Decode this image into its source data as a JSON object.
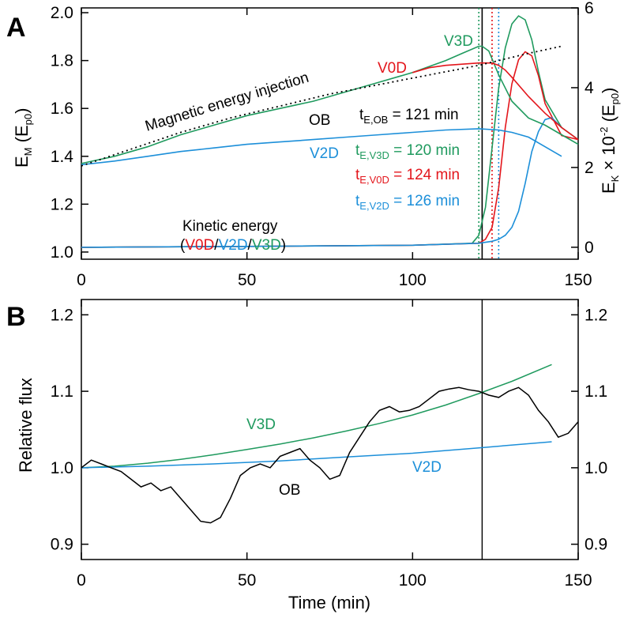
{
  "colors": {
    "V0D": "#e3161c",
    "V2D": "#1c8fd9",
    "V3D": "#1f9a5e",
    "OB": "#000000",
    "axis": "#000000"
  },
  "chart_data": [
    {
      "panel": "A",
      "type": "line",
      "xlabel": "",
      "ylabel_left": "E_M (E_p0)",
      "ylabel_right": "E_K × 10^-2 (E_p0)",
      "xlim": [
        0,
        150
      ],
      "ylim_left": [
        0.97,
        2.02
      ],
      "ylim_right": [
        -0.3,
        6.0
      ],
      "xticks": [
        0,
        50,
        100,
        150
      ],
      "yticks_left": [
        "1.0",
        "1.2",
        "1.4",
        "1.6",
        "1.8",
        "2.0"
      ],
      "yticks_left_values": [
        1.0,
        1.2,
        1.4,
        1.6,
        1.8,
        2.0
      ],
      "yticks_right": [
        "0",
        "2",
        "4",
        "6"
      ],
      "yticks_right_values": [
        0,
        2,
        4,
        6
      ],
      "magnetic_series": [
        {
          "name": "V3D",
          "axis": "left",
          "x": [
            0,
            10,
            20,
            30,
            40,
            50,
            60,
            70,
            80,
            90,
            100,
            110,
            115,
            120,
            121,
            123,
            126,
            130,
            135,
            140,
            145,
            150
          ],
          "y": [
            1.37,
            1.4,
            1.44,
            1.49,
            1.53,
            1.57,
            1.6,
            1.63,
            1.67,
            1.71,
            1.75,
            1.8,
            1.83,
            1.86,
            1.86,
            1.84,
            1.74,
            1.63,
            1.56,
            1.53,
            1.49,
            1.45
          ]
        },
        {
          "name": "V0D",
          "axis": "left",
          "x": [
            100,
            105,
            110,
            115,
            120,
            123,
            124,
            126,
            128,
            130,
            135,
            140,
            145,
            150
          ],
          "y": [
            1.75,
            1.77,
            1.78,
            1.785,
            1.79,
            1.79,
            1.79,
            1.78,
            1.76,
            1.73,
            1.65,
            1.58,
            1.52,
            1.47
          ]
        },
        {
          "name": "V2D",
          "axis": "left",
          "x": [
            0,
            10,
            20,
            30,
            40,
            50,
            60,
            70,
            80,
            90,
            100,
            110,
            120,
            126,
            130,
            135,
            140,
            145
          ],
          "y": [
            1.365,
            1.38,
            1.4,
            1.42,
            1.435,
            1.45,
            1.46,
            1.47,
            1.48,
            1.49,
            1.5,
            1.51,
            1.515,
            1.51,
            1.5,
            1.48,
            1.44,
            1.4
          ]
        },
        {
          "name": "Magnetic energy injection",
          "axis": "left",
          "style": "dotted",
          "x": [
            0,
            15,
            30,
            45,
            60,
            75,
            90,
            105,
            120,
            135,
            145
          ],
          "y": [
            1.36,
            1.43,
            1.5,
            1.56,
            1.61,
            1.66,
            1.7,
            1.74,
            1.78,
            1.83,
            1.86
          ]
        }
      ],
      "kinetic_series": [
        {
          "name": "V3D",
          "axis": "right",
          "x": [
            0,
            50,
            100,
            118,
            120,
            122,
            124,
            126,
            128,
            130,
            132,
            134,
            136,
            138,
            140,
            145,
            150
          ],
          "y": [
            0.0,
            0.02,
            0.05,
            0.1,
            0.3,
            1.0,
            2.5,
            4.0,
            5.0,
            5.6,
            5.8,
            5.7,
            5.2,
            4.4,
            3.7,
            3.0,
            2.7
          ]
        },
        {
          "name": "V0D",
          "axis": "right",
          "x": [
            0,
            50,
            100,
            120,
            122,
            124,
            126,
            128,
            130,
            132,
            134,
            136,
            138,
            140,
            145,
            150
          ],
          "y": [
            0.0,
            0.02,
            0.05,
            0.1,
            0.2,
            0.5,
            1.5,
            3.0,
            4.1,
            4.7,
            4.9,
            4.8,
            4.3,
            3.6,
            2.8,
            2.7
          ]
        },
        {
          "name": "V2D",
          "axis": "right",
          "x": [
            0,
            50,
            100,
            120,
            124,
            126,
            128,
            130,
            132,
            134,
            136,
            138,
            140,
            142,
            145
          ],
          "y": [
            0.0,
            0.02,
            0.05,
            0.1,
            0.15,
            0.2,
            0.3,
            0.5,
            0.9,
            1.6,
            2.4,
            2.9,
            3.2,
            3.25,
            3.0
          ]
        }
      ],
      "eruption_times": [
        {
          "name": "OB",
          "t": 121,
          "style": "solid"
        },
        {
          "name": "V3D",
          "t": 120,
          "style": "dotted"
        },
        {
          "name": "V0D",
          "t": 124,
          "style": "dotted"
        },
        {
          "name": "V2D",
          "t": 126,
          "style": "dotted"
        }
      ]
    },
    {
      "panel": "B",
      "type": "line",
      "xlabel": "Time (min)",
      "ylabel": "Relative flux",
      "xlim": [
        0,
        150
      ],
      "ylim": [
        0.88,
        1.22
      ],
      "xticks": [
        0,
        50,
        100,
        150
      ],
      "yticks": [
        "0.9",
        "1.0",
        "1.1",
        "1.2"
      ],
      "yticks_values": [
        0.9,
        1.0,
        1.1,
        1.2
      ],
      "vline_t": 121,
      "series": [
        {
          "name": "V3D",
          "x": [
            0,
            10,
            20,
            30,
            40,
            50,
            60,
            70,
            80,
            90,
            100,
            110,
            120,
            130,
            142
          ],
          "y": [
            1.0,
            1.002,
            1.006,
            1.011,
            1.017,
            1.024,
            1.031,
            1.039,
            1.048,
            1.058,
            1.069,
            1.082,
            1.097,
            1.113,
            1.135
          ]
        },
        {
          "name": "V2D",
          "x": [
            0,
            20,
            40,
            60,
            80,
            100,
            120,
            142
          ],
          "y": [
            1.0,
            1.002,
            1.005,
            1.009,
            1.014,
            1.019,
            1.026,
            1.034
          ]
        },
        {
          "name": "OB",
          "x": [
            0,
            3,
            6,
            9,
            12,
            15,
            18,
            21,
            24,
            27,
            30,
            33,
            36,
            39,
            42,
            45,
            48,
            51,
            54,
            57,
            60,
            63,
            66,
            69,
            72,
            75,
            78,
            81,
            84,
            87,
            90,
            93,
            96,
            99,
            102,
            105,
            108,
            111,
            114,
            117,
            120,
            123,
            126,
            129,
            132,
            135,
            138,
            141,
            144,
            147,
            150
          ],
          "y": [
            1.0,
            1.01,
            1.005,
            1.0,
            0.995,
            0.985,
            0.975,
            0.98,
            0.97,
            0.975,
            0.96,
            0.945,
            0.93,
            0.928,
            0.935,
            0.96,
            0.99,
            1.0,
            1.005,
            1.0,
            1.015,
            1.02,
            1.025,
            1.01,
            1.0,
            0.985,
            0.99,
            1.02,
            1.04,
            1.06,
            1.075,
            1.08,
            1.073,
            1.075,
            1.08,
            1.09,
            1.1,
            1.103,
            1.105,
            1.102,
            1.1,
            1.095,
            1.092,
            1.1,
            1.105,
            1.095,
            1.075,
            1.06,
            1.04,
            1.045,
            1.06
          ]
        }
      ]
    }
  ],
  "panel_a": {
    "letter": "A",
    "annotation_injection": "Magnetic energy injection",
    "label_OB": "OB",
    "label_V2D": "V2D",
    "label_V0D": "V0D",
    "label_V3D": "V3D",
    "kinetic_title": "Kinetic energy",
    "kinetic_open": "(",
    "kinetic_V0D": "V0D",
    "kinetic_slash1": "/",
    "kinetic_V2D": "V2D",
    "kinetic_slash2": "/",
    "kinetic_V3D": "V3D",
    "kinetic_close": ")",
    "t_prefix": "t",
    "t_OB_sub": "E,OB",
    "t_OB_value": " = 121 min",
    "t_V3D_sub": "E,V3D",
    "t_V3D_value": " = 120 min",
    "t_V0D_sub": "E,V0D",
    "t_V0D_value": " = 124 min",
    "t_V2D_sub": "E,V2D",
    "t_V2D_value": " = 126 min",
    "ylabel_left_main": "E",
    "ylabel_left_sub": "M",
    "ylabel_left_paren": " (E",
    "ylabel_left_sub2": "p0",
    "ylabel_left_close": ")",
    "ylabel_right_main": "E",
    "ylabel_right_sub": "K",
    "ylabel_right_mid": " × 10",
    "ylabel_right_sup": "-2",
    "ylabel_right_paren": " (E",
    "ylabel_right_sub2": "p0",
    "ylabel_right_close": ")"
  },
  "panel_b": {
    "letter": "B",
    "label_V3D": "V3D",
    "label_V2D": "V2D",
    "label_OB": "OB",
    "ylabel": "Relative flux",
    "xlabel": "Time (min)"
  }
}
